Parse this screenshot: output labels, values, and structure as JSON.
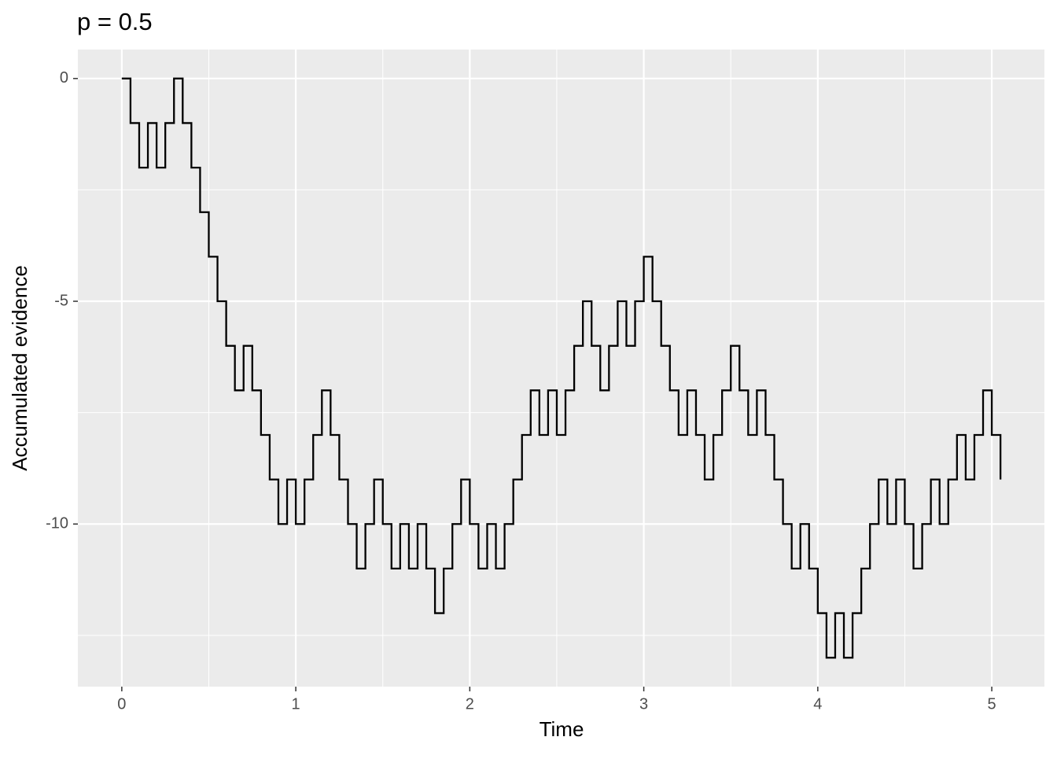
{
  "chart_data": {
    "type": "step",
    "title": "p = 0.5",
    "x_label": "Time",
    "y_label": "Accumulated evidence",
    "x": [
      0,
      0.05,
      0.1,
      0.15,
      0.2,
      0.25,
      0.3,
      0.35,
      0.4,
      0.45,
      0.5,
      0.55,
      0.6,
      0.65,
      0.7,
      0.75,
      0.8,
      0.85,
      0.9,
      0.95,
      1,
      1.05,
      1.1,
      1.15,
      1.2,
      1.25,
      1.3,
      1.35,
      1.4,
      1.45,
      1.5,
      1.55,
      1.6,
      1.65,
      1.7,
      1.75,
      1.8,
      1.85,
      1.9,
      1.95,
      2,
      2.05,
      2.1,
      2.15,
      2.2,
      2.25,
      2.3,
      2.35,
      2.4,
      2.45,
      2.5,
      2.55,
      2.6,
      2.65,
      2.7,
      2.75,
      2.8,
      2.85,
      2.9,
      2.95,
      3,
      3.05,
      3.1,
      3.15,
      3.2,
      3.25,
      3.3,
      3.35,
      3.4,
      3.45,
      3.5,
      3.55,
      3.6,
      3.65,
      3.7,
      3.75,
      3.8,
      3.85,
      3.9,
      3.95,
      4,
      4.05,
      4.1,
      4.15,
      4.2,
      4.25,
      4.3,
      4.35,
      4.4,
      4.45,
      4.5,
      4.55,
      4.6,
      4.65,
      4.7,
      4.75,
      4.8,
      4.85,
      4.9,
      4.95,
      5,
      5.05
    ],
    "values": [
      0,
      -1,
      -2,
      -1,
      -2,
      -1,
      0,
      -1,
      -2,
      -3,
      -4,
      -5,
      -6,
      -7,
      -6,
      -7,
      -8,
      -9,
      -10,
      -9,
      -10,
      -9,
      -8,
      -7,
      -8,
      -9,
      -10,
      -11,
      -10,
      -9,
      -10,
      -11,
      -10,
      -11,
      -10,
      -11,
      -12,
      -11,
      -10,
      -9,
      -10,
      -11,
      -10,
      -11,
      -10,
      -9,
      -8,
      -7,
      -8,
      -7,
      -8,
      -7,
      -6,
      -5,
      -6,
      -7,
      -6,
      -5,
      -6,
      -5,
      -4,
      -5,
      -6,
      -7,
      -8,
      -7,
      -8,
      -9,
      -8,
      -7,
      -6,
      -7,
      -8,
      -7,
      -8,
      -9,
      -10,
      -11,
      -10,
      -11,
      -12,
      -13,
      -12,
      -13,
      -12,
      -11,
      -10,
      -9,
      -10,
      -9,
      -10,
      -11,
      -10,
      -9,
      -10,
      -9,
      -8,
      -9,
      -8,
      -7,
      -8,
      -9
    ],
    "color": "#000000",
    "xlim": [
      -0.2525,
      5.3025
    ],
    "ylim": [
      -13.65,
      0.65
    ],
    "xticks": [
      0,
      1,
      2,
      3,
      4,
      5
    ],
    "yticks": [
      -10,
      -5,
      0
    ],
    "xminor": [
      0.5,
      1.5,
      2.5,
      3.5,
      4.5
    ],
    "yminor": [
      -12.5,
      -7.5,
      -2.5
    ],
    "grid": true
  }
}
